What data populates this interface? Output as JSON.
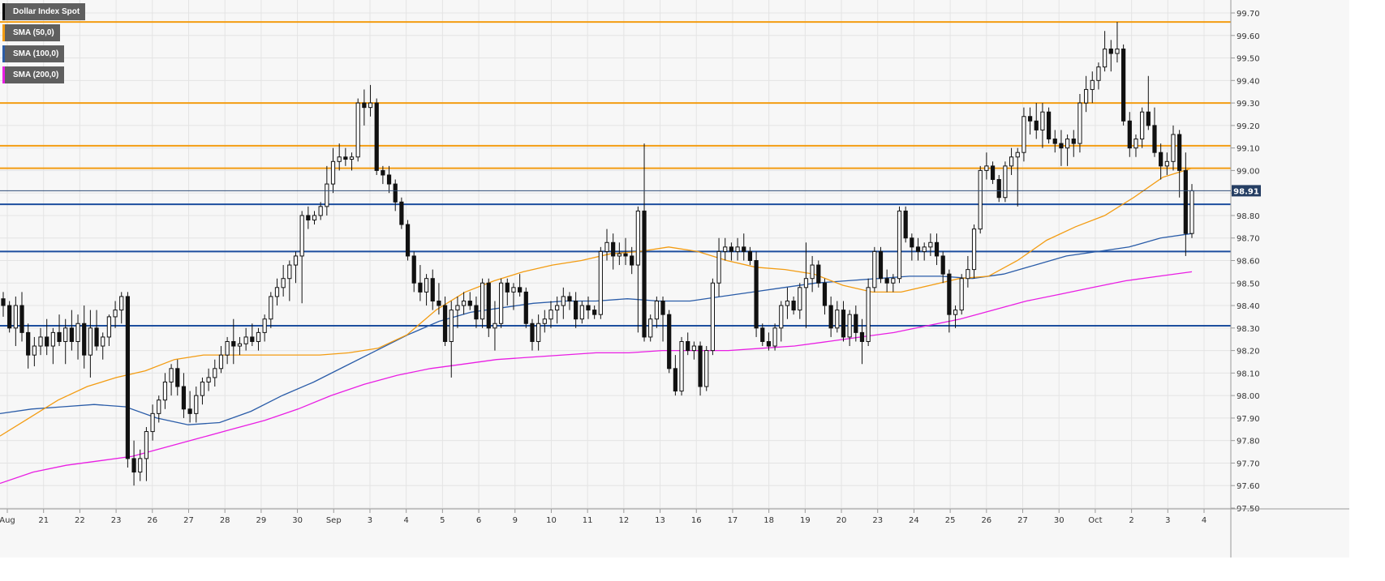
{
  "chart_data": {
    "type": "candlestick",
    "title": "Dollar Index Spot",
    "legend": [
      {
        "label": "Dollar Index Spot",
        "color": "#000000"
      },
      {
        "label": "SMA (50,0)",
        "color": "#f39c12"
      },
      {
        "label": "SMA (100,0)",
        "color": "#2a5ca8"
      },
      {
        "label": "SMA (200,0)",
        "color": "#e91ee3"
      }
    ],
    "ylim": [
      97.5,
      99.72
    ],
    "y_ticks": [
      "99.70",
      "99.60",
      "99.50",
      "99.40",
      "99.30",
      "99.20",
      "99.10",
      "99.00",
      "98.90",
      "98.80",
      "98.70",
      "98.60",
      "98.50",
      "98.40",
      "98.30",
      "98.20",
      "98.10",
      "98.00",
      "97.90",
      "97.80",
      "97.70",
      "97.60",
      "97.50"
    ],
    "x_tick_labels": [
      "Aug",
      "21",
      "22",
      "23",
      "26",
      "27",
      "28",
      "29",
      "30",
      "Sep",
      "3",
      "4",
      "5",
      "6",
      "9",
      "10",
      "11",
      "12",
      "13",
      "16",
      "17",
      "18",
      "19",
      "20",
      "23",
      "24",
      "25",
      "26",
      "27",
      "30",
      "Oct",
      "2",
      "3",
      "4"
    ],
    "last_price_label": "98.91",
    "last_price": 98.91,
    "horizontal_levels": [
      {
        "value": 99.66,
        "color": "#f39c12"
      },
      {
        "value": 99.3,
        "color": "#f39c12"
      },
      {
        "value": 99.11,
        "color": "#f39c12"
      },
      {
        "value": 99.01,
        "color": "#f39c12"
      },
      {
        "value": 98.85,
        "color": "#1d4e9e"
      },
      {
        "value": 98.64,
        "color": "#1d4e9e"
      },
      {
        "value": 98.31,
        "color": "#1d4e9e"
      }
    ],
    "candles": [
      [
        98.43,
        98.46,
        98.35,
        98.4
      ],
      [
        98.4,
        98.42,
        98.28,
        98.3
      ],
      [
        98.3,
        98.44,
        98.22,
        98.4
      ],
      [
        98.4,
        98.46,
        98.24,
        98.28
      ],
      [
        98.28,
        98.32,
        98.12,
        98.18
      ],
      [
        98.18,
        98.26,
        98.13,
        98.22
      ],
      [
        98.22,
        98.3,
        98.18,
        98.26
      ],
      [
        98.26,
        98.34,
        98.18,
        98.22
      ],
      [
        98.22,
        98.3,
        98.14,
        98.28
      ],
      [
        98.28,
        98.36,
        98.22,
        98.24
      ],
      [
        98.24,
        98.34,
        98.14,
        98.3
      ],
      [
        98.3,
        98.38,
        98.2,
        98.24
      ],
      [
        98.24,
        98.36,
        98.16,
        98.32
      ],
      [
        98.32,
        98.4,
        98.12,
        98.18
      ],
      [
        98.18,
        98.38,
        98.08,
        98.3
      ],
      [
        98.3,
        98.38,
        98.2,
        98.22
      ],
      [
        98.22,
        98.28,
        98.16,
        98.26
      ],
      [
        98.26,
        98.36,
        98.22,
        98.35
      ],
      [
        98.35,
        98.42,
        98.3,
        98.38
      ],
      [
        98.38,
        98.46,
        98.32,
        98.44
      ],
      [
        98.44,
        98.46,
        97.68,
        97.72
      ],
      [
        97.72,
        97.8,
        97.6,
        97.66
      ],
      [
        97.66,
        97.76,
        97.62,
        97.72
      ],
      [
        97.72,
        97.86,
        97.62,
        97.84
      ],
      [
        97.84,
        97.96,
        97.8,
        97.92
      ],
      [
        97.92,
        98.0,
        97.88,
        97.98
      ],
      [
        97.98,
        98.1,
        97.94,
        98.06
      ],
      [
        98.06,
        98.14,
        98.0,
        98.12
      ],
      [
        98.12,
        98.16,
        98.0,
        98.04
      ],
      [
        98.04,
        98.1,
        97.9,
        97.94
      ],
      [
        97.94,
        98.02,
        97.88,
        97.92
      ],
      [
        97.92,
        98.04,
        97.88,
        98.0
      ],
      [
        98.0,
        98.08,
        97.96,
        98.06
      ],
      [
        98.06,
        98.12,
        98.02,
        98.08
      ],
      [
        98.08,
        98.16,
        98.04,
        98.12
      ],
      [
        98.12,
        98.22,
        98.1,
        98.18
      ],
      [
        98.18,
        98.26,
        98.14,
        98.24
      ],
      [
        98.24,
        98.34,
        98.14,
        98.22
      ],
      [
        98.22,
        98.26,
        98.18,
        98.23
      ],
      [
        98.23,
        98.3,
        98.2,
        98.26
      ],
      [
        98.26,
        98.32,
        98.22,
        98.24
      ],
      [
        98.24,
        98.3,
        98.2,
        98.28
      ],
      [
        98.28,
        98.36,
        98.24,
        98.34
      ],
      [
        98.34,
        98.46,
        98.3,
        98.44
      ],
      [
        98.44,
        98.52,
        98.4,
        98.48
      ],
      [
        98.48,
        98.58,
        98.44,
        98.52
      ],
      [
        98.52,
        98.6,
        98.42,
        98.58
      ],
      [
        98.58,
        98.64,
        98.5,
        98.62
      ],
      [
        98.62,
        98.82,
        98.41,
        98.8
      ],
      [
        98.8,
        98.84,
        98.74,
        98.78
      ],
      [
        98.78,
        98.82,
        98.76,
        98.8
      ],
      [
        98.8,
        98.86,
        98.78,
        98.84
      ],
      [
        98.84,
        99.02,
        98.8,
        98.94
      ],
      [
        98.94,
        99.1,
        98.9,
        99.04
      ],
      [
        99.04,
        99.12,
        99.0,
        99.06
      ],
      [
        99.06,
        99.1,
        99.02,
        99.05
      ],
      [
        99.05,
        99.08,
        99.0,
        99.06
      ],
      [
        99.06,
        99.32,
        99.04,
        99.3
      ],
      [
        99.3,
        99.36,
        99.2,
        99.28
      ],
      [
        99.28,
        99.38,
        99.24,
        99.3
      ],
      [
        99.3,
        99.32,
        98.98,
        99.0
      ],
      [
        99.0,
        99.02,
        98.94,
        98.98
      ],
      [
        98.98,
        99.02,
        98.9,
        98.94
      ],
      [
        98.94,
        98.96,
        98.82,
        98.86
      ],
      [
        98.86,
        98.88,
        98.74,
        98.76
      ],
      [
        98.76,
        98.78,
        98.6,
        98.62
      ],
      [
        98.62,
        98.64,
        98.46,
        98.5
      ],
      [
        98.5,
        98.58,
        98.42,
        98.46
      ],
      [
        98.46,
        98.54,
        98.4,
        98.52
      ],
      [
        98.52,
        98.56,
        98.38,
        98.42
      ],
      [
        98.42,
        98.5,
        98.36,
        98.4
      ],
      [
        98.4,
        98.44,
        98.22,
        98.24
      ],
      [
        98.24,
        98.42,
        98.08,
        98.38
      ],
      [
        98.38,
        98.44,
        98.3,
        98.4
      ],
      [
        98.4,
        98.46,
        98.36,
        98.42
      ],
      [
        98.42,
        98.46,
        98.38,
        98.4
      ],
      [
        98.4,
        98.44,
        98.3,
        98.34
      ],
      [
        98.34,
        98.52,
        98.3,
        98.5
      ],
      [
        98.5,
        98.52,
        98.26,
        98.3
      ],
      [
        98.3,
        98.42,
        98.2,
        98.32
      ],
      [
        98.32,
        98.52,
        98.3,
        98.5
      ],
      [
        98.5,
        98.52,
        98.4,
        98.46
      ],
      [
        98.46,
        98.5,
        98.38,
        98.48
      ],
      [
        98.48,
        98.54,
        98.44,
        98.46
      ],
      [
        98.46,
        98.48,
        98.3,
        98.32
      ],
      [
        98.32,
        98.34,
        98.2,
        98.24
      ],
      [
        98.24,
        98.36,
        98.2,
        98.32
      ],
      [
        98.32,
        98.38,
        98.28,
        98.34
      ],
      [
        98.34,
        98.42,
        98.3,
        98.38
      ],
      [
        98.38,
        98.44,
        98.32,
        98.4
      ],
      [
        98.4,
        98.48,
        98.34,
        98.44
      ],
      [
        98.44,
        98.46,
        98.38,
        98.42
      ],
      [
        98.42,
        98.46,
        98.3,
        98.34
      ],
      [
        98.34,
        98.42,
        98.32,
        98.4
      ],
      [
        98.4,
        98.44,
        98.34,
        98.38
      ],
      [
        98.38,
        98.4,
        98.34,
        98.36
      ],
      [
        98.36,
        98.66,
        98.34,
        98.64
      ],
      [
        98.64,
        98.74,
        98.6,
        98.68
      ],
      [
        98.68,
        98.72,
        98.56,
        98.62
      ],
      [
        98.62,
        98.68,
        98.58,
        98.63
      ],
      [
        98.63,
        98.7,
        98.58,
        98.62
      ],
      [
        98.62,
        98.66,
        98.54,
        98.58
      ],
      [
        98.58,
        98.84,
        98.28,
        98.82
      ],
      [
        98.82,
        99.12,
        98.24,
        98.26
      ],
      [
        98.26,
        98.36,
        98.24,
        98.34
      ],
      [
        98.34,
        98.44,
        98.3,
        98.42
      ],
      [
        98.42,
        98.44,
        98.24,
        98.36
      ],
      [
        98.36,
        98.38,
        98.1,
        98.12
      ],
      [
        98.12,
        98.18,
        98.0,
        98.02
      ],
      [
        98.02,
        98.26,
        98.0,
        98.24
      ],
      [
        98.24,
        98.28,
        98.18,
        98.2
      ],
      [
        98.2,
        98.24,
        98.16,
        98.22
      ],
      [
        98.22,
        98.24,
        98.0,
        98.04
      ],
      [
        98.04,
        98.22,
        98.02,
        98.2
      ],
      [
        98.2,
        98.52,
        98.18,
        98.5
      ],
      [
        98.5,
        98.7,
        98.44,
        98.64
      ],
      [
        98.64,
        98.7,
        98.6,
        98.66
      ],
      [
        98.66,
        98.68,
        98.6,
        98.64
      ],
      [
        98.64,
        98.7,
        98.6,
        98.66
      ],
      [
        98.66,
        98.72,
        98.6,
        98.64
      ],
      [
        98.64,
        98.66,
        98.58,
        98.6
      ],
      [
        98.6,
        98.64,
        98.26,
        98.3
      ],
      [
        98.3,
        98.32,
        98.22,
        98.24
      ],
      [
        98.24,
        98.28,
        98.2,
        98.22
      ],
      [
        98.22,
        98.32,
        98.2,
        98.3
      ],
      [
        98.3,
        98.42,
        98.24,
        98.4
      ],
      [
        98.4,
        98.48,
        98.34,
        98.42
      ],
      [
        98.42,
        98.44,
        98.36,
        98.38
      ],
      [
        98.38,
        98.5,
        98.34,
        98.48
      ],
      [
        98.48,
        98.68,
        98.3,
        98.52
      ],
      [
        98.52,
        98.62,
        98.46,
        98.58
      ],
      [
        98.58,
        98.6,
        98.48,
        98.5
      ],
      [
        98.5,
        98.52,
        98.36,
        98.4
      ],
      [
        98.4,
        98.44,
        98.26,
        98.3
      ],
      [
        98.3,
        98.42,
        98.28,
        98.38
      ],
      [
        98.38,
        98.42,
        98.24,
        98.26
      ],
      [
        98.26,
        98.38,
        98.22,
        98.36
      ],
      [
        98.36,
        98.4,
        98.24,
        98.28
      ],
      [
        98.28,
        98.34,
        98.14,
        98.24
      ],
      [
        98.24,
        98.52,
        98.22,
        98.48
      ],
      [
        98.48,
        98.66,
        98.46,
        98.64
      ],
      [
        98.64,
        98.66,
        98.5,
        98.52
      ],
      [
        98.52,
        98.56,
        98.46,
        98.5
      ],
      [
        98.5,
        98.54,
        98.46,
        98.52
      ],
      [
        98.52,
        98.84,
        98.5,
        98.82
      ],
      [
        98.82,
        98.84,
        98.68,
        98.7
      ],
      [
        98.7,
        98.72,
        98.6,
        98.66
      ],
      [
        98.66,
        98.7,
        98.6,
        98.64
      ],
      [
        98.64,
        98.68,
        98.6,
        98.66
      ],
      [
        98.66,
        98.72,
        98.62,
        98.68
      ],
      [
        98.68,
        98.72,
        98.58,
        98.62
      ],
      [
        98.62,
        98.64,
        98.5,
        98.54
      ],
      [
        98.54,
        98.56,
        98.28,
        98.36
      ],
      [
        98.36,
        98.4,
        98.3,
        98.38
      ],
      [
        98.38,
        98.54,
        98.36,
        98.52
      ],
      [
        98.52,
        98.62,
        98.48,
        98.56
      ],
      [
        98.56,
        98.76,
        98.52,
        98.74
      ],
      [
        98.74,
        99.02,
        98.72,
        99.0
      ],
      [
        99.0,
        99.08,
        98.96,
        99.02
      ],
      [
        99.02,
        99.04,
        98.94,
        98.96
      ],
      [
        98.96,
        98.98,
        98.86,
        98.88
      ],
      [
        98.88,
        99.04,
        98.86,
        99.02
      ],
      [
        99.02,
        99.1,
        98.98,
        99.06
      ],
      [
        99.06,
        99.1,
        98.84,
        99.08
      ],
      [
        99.08,
        99.28,
        99.04,
        99.24
      ],
      [
        99.24,
        99.28,
        99.16,
        99.22
      ],
      [
        99.22,
        99.3,
        99.14,
        99.18
      ],
      [
        99.18,
        99.3,
        99.1,
        99.26
      ],
      [
        99.26,
        99.28,
        99.12,
        99.14
      ],
      [
        99.14,
        99.18,
        99.08,
        99.12
      ],
      [
        99.12,
        99.18,
        99.02,
        99.1
      ],
      [
        99.1,
        99.16,
        99.02,
        99.14
      ],
      [
        99.14,
        99.18,
        99.06,
        99.12
      ],
      [
        99.12,
        99.34,
        99.08,
        99.3
      ],
      [
        99.3,
        99.42,
        99.26,
        99.36
      ],
      [
        99.36,
        99.44,
        99.3,
        99.4
      ],
      [
        99.4,
        99.48,
        99.36,
        99.46
      ],
      [
        99.46,
        99.62,
        99.44,
        99.54
      ],
      [
        99.54,
        99.58,
        99.44,
        99.52
      ],
      [
        99.52,
        99.66,
        99.48,
        99.54
      ],
      [
        99.54,
        99.56,
        99.2,
        99.22
      ],
      [
        99.22,
        99.26,
        99.06,
        99.1
      ],
      [
        99.1,
        99.16,
        99.06,
        99.14
      ],
      [
        99.14,
        99.28,
        99.1,
        99.26
      ],
      [
        99.26,
        99.42,
        99.18,
        99.2
      ],
      [
        99.2,
        99.28,
        99.06,
        99.08
      ],
      [
        99.08,
        99.12,
        98.96,
        99.02
      ],
      [
        99.02,
        99.08,
        98.98,
        99.04
      ],
      [
        99.04,
        99.2,
        99.0,
        99.16
      ],
      [
        99.16,
        99.18,
        98.88,
        99.0
      ],
      [
        99.0,
        99.08,
        98.62,
        98.72
      ],
      [
        98.72,
        98.94,
        98.7,
        98.91
      ]
    ],
    "sma50": [
      97.82,
      97.9,
      97.98,
      98.04,
      98.08,
      98.11,
      98.16,
      98.18,
      98.18,
      98.18,
      98.18,
      98.18,
      98.19,
      98.21,
      98.27,
      98.38,
      98.46,
      98.51,
      98.55,
      98.58,
      98.6,
      98.63,
      98.64,
      98.66,
      98.64,
      98.6,
      98.57,
      98.56,
      98.54,
      98.49,
      98.46,
      98.46,
      98.49,
      98.52,
      98.53,
      98.6,
      98.69,
      98.75,
      98.8,
      98.88,
      98.97,
      99.01
    ],
    "sma100": [
      97.92,
      97.94,
      97.95,
      97.96,
      97.95,
      97.9,
      97.87,
      97.88,
      97.93,
      98.0,
      98.06,
      98.13,
      98.2,
      98.27,
      98.33,
      98.37,
      98.39,
      98.41,
      98.42,
      98.42,
      98.43,
      98.42,
      98.42,
      98.44,
      98.46,
      98.48,
      98.5,
      98.51,
      98.52,
      98.53,
      98.53,
      98.52,
      98.54,
      98.58,
      98.62,
      98.64,
      98.66,
      98.7,
      98.72
    ],
    "sma200": [
      97.61,
      97.66,
      97.69,
      97.71,
      97.73,
      97.77,
      97.81,
      97.85,
      97.89,
      97.94,
      98.0,
      98.05,
      98.09,
      98.12,
      98.14,
      98.16,
      98.17,
      98.18,
      98.19,
      98.19,
      98.2,
      98.2,
      98.2,
      98.21,
      98.22,
      98.24,
      98.26,
      98.28,
      98.31,
      98.34,
      98.38,
      98.42,
      98.45,
      98.48,
      98.51,
      98.53,
      98.55
    ]
  }
}
